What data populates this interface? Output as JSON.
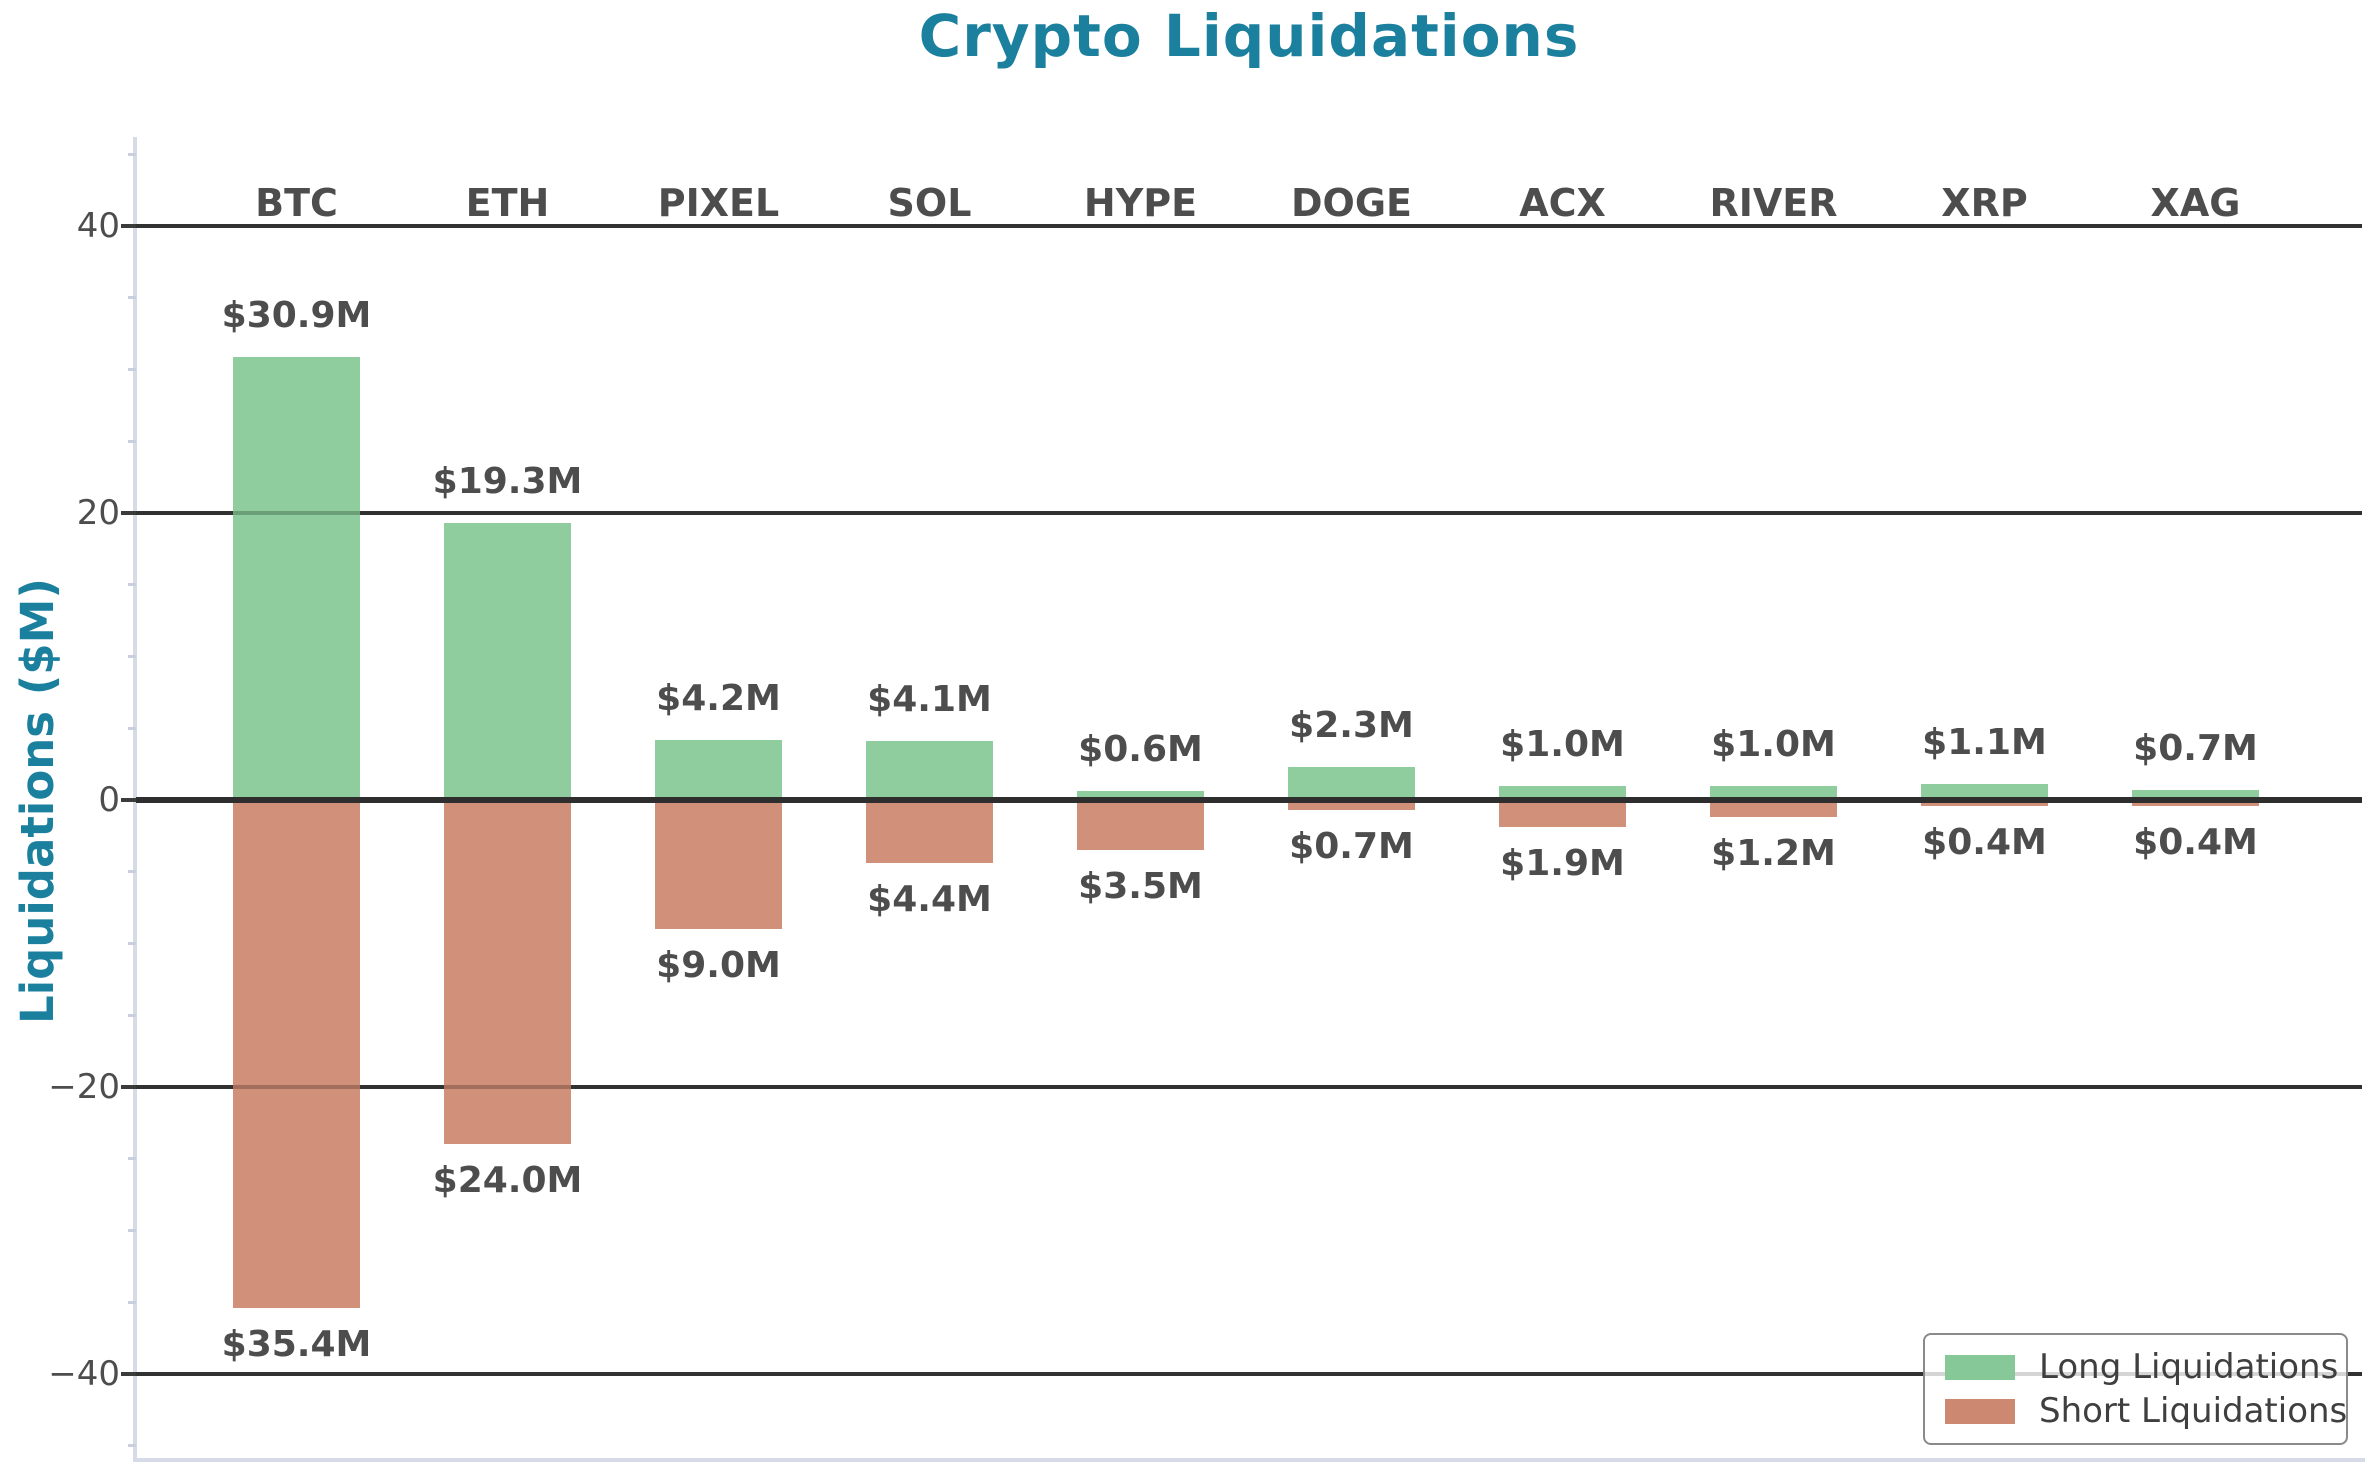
{
  "title": "Crypto Liquidations",
  "ylabel": "Liquidations ($M)",
  "colors": {
    "accent_teal": "#1b7f9e",
    "long_green": "#86c897",
    "short_salmon": "#cc8870",
    "grid": "#3b3b3b",
    "zero_line": "#2e2e2e",
    "label_text": "#4d4d4d",
    "tick_text": "#4d4d4d",
    "spine": "#d7dbe7",
    "minor_tick": "#c9cfdf",
    "legend_border": "#8a8a8a",
    "legend_text": "#3f3f3f"
  },
  "chart_data": {
    "type": "bar",
    "title": "Crypto Liquidations",
    "ylabel": "Liquidations ($M)",
    "categories": [
      "BTC",
      "ETH",
      "PIXEL",
      "SOL",
      "HYPE",
      "DOGE",
      "ACX",
      "RIVER",
      "XRP",
      "XAG"
    ],
    "series": [
      {
        "name": "Long Liquidations",
        "color": "#86c897",
        "values": [
          30.9,
          19.3,
          4.2,
          4.1,
          0.6,
          2.3,
          1.0,
          1.0,
          1.1,
          0.7
        ],
        "labels": [
          "$30.9M",
          "$19.3M",
          "$4.2M",
          "$4.1M",
          "$0.6M",
          "$2.3M",
          "$1.0M",
          "$1.0M",
          "$1.1M",
          "$0.7M"
        ]
      },
      {
        "name": "Short Liquidations",
        "color": "#cc8870",
        "values": [
          -35.4,
          -24.0,
          -9.0,
          -4.4,
          -3.5,
          -0.7,
          -1.9,
          -1.2,
          -0.4,
          -0.4
        ],
        "labels": [
          "$35.4M",
          "$24.0M",
          "$9.0M",
          "$4.4M",
          "$3.5M",
          "$0.7M",
          "$1.9M",
          "$1.2M",
          "$0.4M",
          "$0.4M"
        ]
      }
    ],
    "yticks": [
      {
        "value": 40,
        "label": "40"
      },
      {
        "value": 20,
        "label": "20"
      },
      {
        "value": 0,
        "label": "0"
      },
      {
        "value": -20,
        "label": "−20"
      },
      {
        "value": -40,
        "label": "−40"
      }
    ],
    "ylim": [
      -46,
      46
    ],
    "grid": true,
    "legend_position": "lower right"
  },
  "legend": {
    "items": [
      {
        "label": "Long Liquidations",
        "color": "#86c897"
      },
      {
        "label": "Short Liquidations",
        "color": "#cc8870"
      }
    ]
  }
}
